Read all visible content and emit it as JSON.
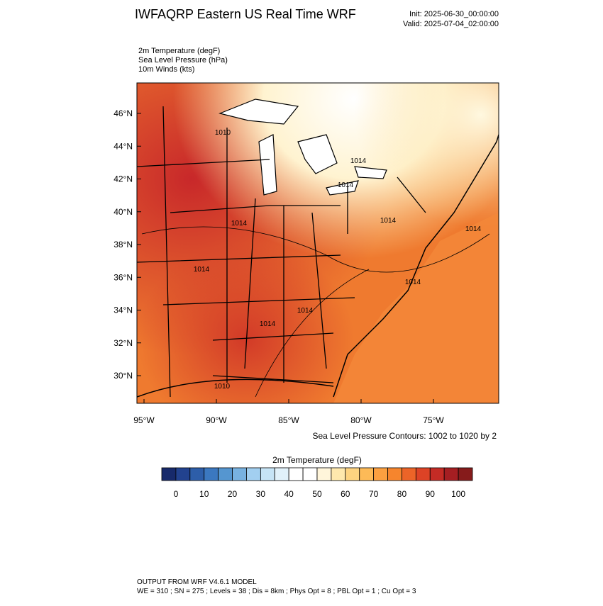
{
  "header": {
    "title": "IWFAQRP Eastern US Real Time WRF",
    "init": "Init: 2025-06-30_00:00:00",
    "valid": "Valid: 2025-07-04_02:00:00"
  },
  "fields": [
    "2m Temperature   (degF)",
    "Sea Level Pressure   (hPa)",
    "10m Winds   (kts)"
  ],
  "map": {
    "lat_labels": [
      "46°N",
      "44°N",
      "42°N",
      "40°N",
      "38°N",
      "36°N",
      "34°N",
      "32°N",
      "30°N"
    ],
    "lon_labels": [
      "95°W",
      "90°W",
      "85°W",
      "80°W",
      "75°W"
    ],
    "contour_labels": [
      "1010",
      "1014",
      "1014",
      "1014",
      "1014",
      "1014",
      "1014",
      "1014",
      "1014",
      "1014",
      "1010"
    ],
    "contour_note": "Sea Level Pressure Contours: 1002 to 1020 by 2"
  },
  "colorbar": {
    "title": "2m Temperature  (degF)",
    "ticks": [
      0,
      10,
      20,
      30,
      40,
      50,
      60,
      70,
      80,
      90,
      100
    ],
    "colors": [
      "#172a6b",
      "#22428f",
      "#2d5ea9",
      "#3b78c0",
      "#5596d0",
      "#78b2e1",
      "#a2cff0",
      "#c6e4f6",
      "#e1f1fa",
      "#ffffff",
      "#ffffff",
      "#fff5da",
      "#fee8ad",
      "#fdd380",
      "#fdba57",
      "#fca040",
      "#f6852d",
      "#ec6428",
      "#dd4326",
      "#c42b25",
      "#a51e22",
      "#861b1b"
    ]
  },
  "footer": {
    "line1": "OUTPUT FROM WRF V4.6.1 MODEL",
    "line2": "WE = 310 ; SN = 275 ; Levels = 38 ; Dis = 8km ; Phys Opt = 8 ; PBL Opt = 1 ; Cu Opt = 3"
  }
}
